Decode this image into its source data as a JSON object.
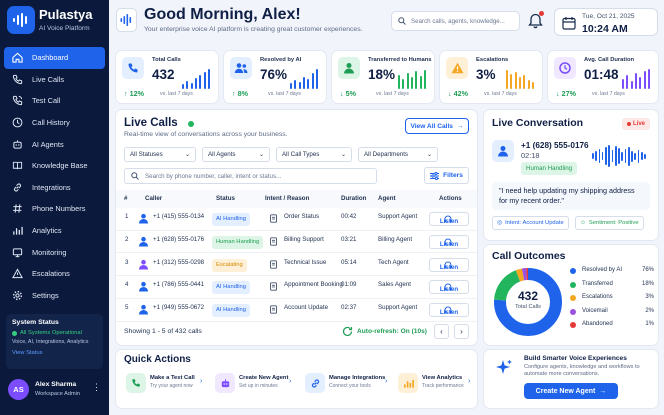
{
  "brand": {
    "name": "Pulastya",
    "subtitle": "AI Voice Platform"
  },
  "nav": [
    {
      "label": "Dashboard",
      "icon": "home-icon",
      "active": true
    },
    {
      "label": "Live Calls",
      "icon": "phone-icon"
    },
    {
      "label": "Test Call",
      "icon": "phone-call-icon"
    },
    {
      "label": "Call History",
      "icon": "clock-icon"
    },
    {
      "label": "AI Agents",
      "icon": "robot-icon"
    },
    {
      "label": "Knowledge Base",
      "icon": "book-icon"
    },
    {
      "label": "Integrations",
      "icon": "link-icon"
    },
    {
      "label": "Phone Numbers",
      "icon": "hash-icon"
    },
    {
      "label": "Analytics",
      "icon": "bar-chart-icon"
    },
    {
      "label": "Monitoring",
      "icon": "monitor-icon"
    },
    {
      "label": "Escalations",
      "icon": "alert-icon"
    },
    {
      "label": "Settings",
      "icon": "gear-icon"
    }
  ],
  "system_status": {
    "title": "System Status",
    "status": "All Systems Operational",
    "detail": "Voice, AI, Integrations, Analytics",
    "link": "View Status"
  },
  "user": {
    "initials": "AS",
    "name": "Alex Sharma",
    "role": "Workspace Admin"
  },
  "header": {
    "greeting": "Good Morning, Alex!",
    "subtitle": "Your enterprise voice AI platform is creating great customer experiences.",
    "search_placeholder": "Search calls, agents, knowledge...",
    "date": "Tue, Oct 21, 2025",
    "time": "10:24 AM"
  },
  "kpis": [
    {
      "label": "Total Calls",
      "value": "432",
      "change": "12%",
      "direction": "up",
      "note": "vs. last 7 days",
      "color": "#1e63e9",
      "bg": "#e3eefe",
      "icon": "phone-icon"
    },
    {
      "label": "Resolved by AI",
      "value": "76%",
      "change": "8%",
      "direction": "up",
      "note": "vs. last 7 days",
      "color": "#1e63e9",
      "bg": "#e3eefe",
      "icon": "users-icon"
    },
    {
      "label": "Transferred to Humans",
      "value": "18%",
      "change": "5%",
      "direction": "down",
      "note": "vs. last 7 days",
      "color": "#1f9d55",
      "bg": "#dcf5e6",
      "icon": "person-icon"
    },
    {
      "label": "Escalations",
      "value": "3%",
      "change": "42%",
      "direction": "down",
      "note": "vs. last 7 days",
      "color": "#f5a623",
      "bg": "#fdf0d7",
      "icon": "warning-icon"
    },
    {
      "label": "Avg. Call Duration",
      "value": "01:48",
      "change": "27%",
      "direction": "down",
      "note": "vs. last 7 days",
      "color": "#7c4dff",
      "bg": "#efe8ff",
      "icon": "clock-icon"
    }
  ],
  "live_calls": {
    "title": "Live Calls",
    "subtitle": "Real-time view of conversations across your business.",
    "view_all": "View All Calls",
    "filters": [
      "All Statuses",
      "All Agents",
      "All Call Types",
      "All Departments"
    ],
    "search_placeholder": "Search by phone number, caller, intent or status...",
    "filters_button": "Filters",
    "columns": [
      "#",
      "Caller",
      "Status",
      "Intent / Reason",
      "Duration",
      "Agent",
      "Actions"
    ],
    "rows": [
      {
        "n": "1",
        "caller": "+1 (415) 555-0134",
        "status": "AI Handling",
        "status_type": "ai",
        "intent": "Order Status",
        "duration": "00:42",
        "agent": "Support Agent",
        "action": "Listen",
        "color": "#1e63e9"
      },
      {
        "n": "2",
        "caller": "+1 (628) 555-0176",
        "status": "Human Handling",
        "status_type": "hh",
        "intent": "Billing Support",
        "duration": "03:21",
        "agent": "Billing Agent",
        "action": "Listen",
        "color": "#1e63e9"
      },
      {
        "n": "3",
        "caller": "+1 (312) 555-0298",
        "status": "Escalating",
        "status_type": "es",
        "intent": "Technical Issue",
        "duration": "05:14",
        "agent": "Tech Agent",
        "action": "Listen",
        "color": "#7c4dff"
      },
      {
        "n": "4",
        "caller": "+1 (786) 555-0441",
        "status": "AI Handling",
        "status_type": "ai",
        "intent": "Appointment Booking",
        "duration": "01:09",
        "agent": "Sales Agent",
        "action": "Listen",
        "color": "#1e63e9"
      },
      {
        "n": "5",
        "caller": "+1 (949) 555-0672",
        "status": "AI Handling",
        "status_type": "ai",
        "intent": "Account Update",
        "duration": "02:37",
        "agent": "Support Agent",
        "action": "Listen",
        "color": "#1e63e9"
      }
    ],
    "footer": "Showing 1 - 5 of 432 calls",
    "auto_refresh": "Auto-refresh: On (10s)"
  },
  "quick_actions": {
    "title": "Quick Actions",
    "items": [
      {
        "title": "Make a Test Call",
        "sub": "Try your agent now",
        "icon": "phone-icon",
        "color": "#1f9d55",
        "bg": "#dcf5e6"
      },
      {
        "title": "Create New Agent",
        "sub": "Set up in minutes",
        "icon": "robot-icon",
        "color": "#7c4dff",
        "bg": "#efe8ff"
      },
      {
        "title": "Manage Integrations",
        "sub": "Connect your tools",
        "icon": "link-icon",
        "color": "#1e63e9",
        "bg": "#e3eefe"
      },
      {
        "title": "View Analytics",
        "sub": "Track performance",
        "icon": "bar-chart-icon",
        "color": "#f5a623",
        "bg": "#fdf0d7"
      }
    ]
  },
  "live_conversation": {
    "title": "Live Conversation",
    "badge": "Live",
    "phone": "+1 (628) 555-0176",
    "time": "02:18",
    "status": "Human Handling",
    "quote": "\"I need help updating my shipping address for my recent order.\"",
    "intent": "Intent: Account Update",
    "sentiment": "Sentiment: Positive"
  },
  "call_outcomes": {
    "title": "Call Outcomes",
    "total": "432",
    "total_label": "Total Calls",
    "items": [
      {
        "name": "Resolved by AI",
        "value": "76%",
        "pct": 76,
        "color": "#1e63e9"
      },
      {
        "name": "Transferred",
        "value": "18%",
        "pct": 18,
        "color": "#22b55e"
      },
      {
        "name": "Escalations",
        "value": "3%",
        "pct": 3,
        "color": "#f5a623"
      },
      {
        "name": "Voicemail",
        "value": "2%",
        "pct": 2,
        "color": "#9b51e0"
      },
      {
        "name": "Abandoned",
        "value": "1%",
        "pct": 1,
        "color": "#e53935"
      }
    ]
  },
  "build": {
    "title": "Build Smarter Voice Experiences",
    "sub": "Configure agents, knowledge and workflows to automate more conversations.",
    "button": "Create New Agent"
  }
}
